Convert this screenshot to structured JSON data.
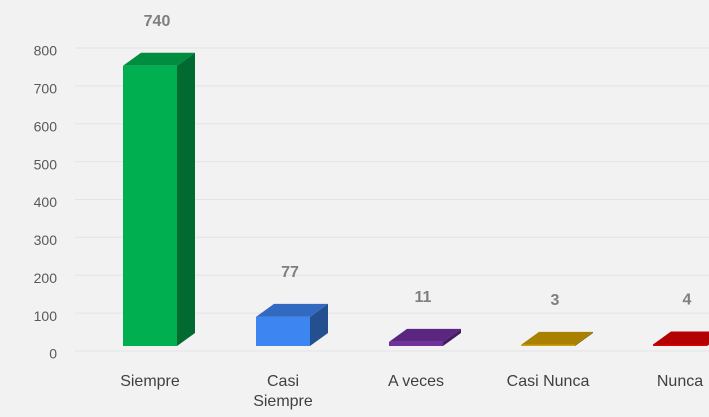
{
  "chart_data": {
    "type": "bar3d",
    "categories": [
      "Siempre",
      "Casi Siempre",
      "A veces",
      "Casi Nunca",
      "Nunca"
    ],
    "values": [
      740,
      77,
      11,
      3,
      4
    ],
    "colors": [
      "#00b050",
      "#3d85f0",
      "#7030a0",
      "#d4a000",
      "#e00000"
    ],
    "ylim": [
      0,
      800
    ],
    "yticks": [
      0,
      100,
      200,
      300,
      400,
      500,
      600,
      700,
      800
    ],
    "grid": true
  }
}
